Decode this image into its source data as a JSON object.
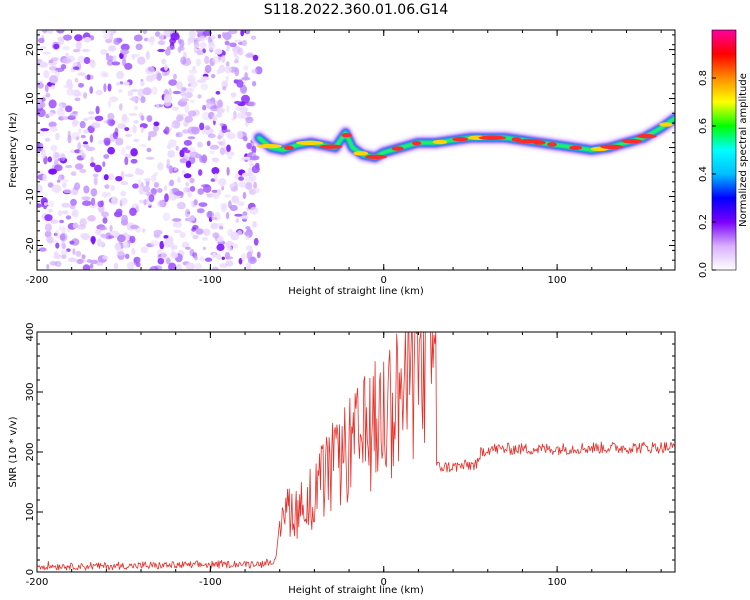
{
  "figure": {
    "title": "S118.2022.360.01.06.G14"
  },
  "chart_data": [
    {
      "type": "heatmap",
      "title": "",
      "xlabel": "Height of straight line (km)",
      "ylabel": "Frequency (Hz)",
      "xlim": [
        -200,
        168
      ],
      "ylim": [
        -25,
        24
      ],
      "xticks": [
        "-200",
        "-100",
        "0",
        "100"
      ],
      "xtick_values": [
        -200,
        -100,
        0,
        100
      ],
      "yticks": [
        "-20",
        "-10",
        "0",
        "10",
        "20"
      ],
      "ytick_values": [
        -20,
        -10,
        0,
        10,
        20
      ],
      "noise_region_x": [
        -200,
        -72
      ],
      "ridge": {
        "name": "",
        "x": [
          -72,
          -65,
          -58,
          -50,
          -42,
          -35,
          -28,
          -22,
          -18,
          -12,
          -5,
          0,
          10,
          20,
          30,
          40,
          50,
          60,
          70,
          80,
          90,
          100,
          110,
          120,
          130,
          140,
          150,
          160,
          168
        ],
        "y": [
          2,
          0,
          -0.5,
          0.5,
          1,
          0.5,
          0,
          3,
          0,
          -1.5,
          -2,
          -1,
          0,
          1,
          1,
          1.5,
          2,
          2,
          2,
          1.5,
          1,
          0.5,
          0,
          -0.5,
          0,
          1,
          2,
          4,
          6
        ]
      },
      "colorbar": {
        "label": "Normalized spectral amplitude",
        "range": [
          0.0,
          1.0
        ],
        "ticks": [
          "0.0",
          "0.2",
          "0.4",
          "0.6",
          "0.8"
        ],
        "tick_values": [
          0.0,
          0.2,
          0.4,
          0.6,
          0.8
        ],
        "colors": [
          "#ffffff",
          "#d9b0ff",
          "#7a00ff",
          "#0000ff",
          "#00bfff",
          "#00ffff",
          "#00ff00",
          "#ffff00",
          "#ff8c00",
          "#ff0000",
          "#ff00a0"
        ]
      }
    },
    {
      "type": "line",
      "title": "",
      "xlabel": "Height of straight line (km)",
      "ylabel": "SNR (10 * v/v)",
      "xlim": [
        -200,
        168
      ],
      "ylim": [
        0,
        400
      ],
      "xticks": [
        "-200",
        "-100",
        "0",
        "100"
      ],
      "xtick_values": [
        -200,
        -100,
        0,
        100
      ],
      "yticks": [
        "0",
        "100",
        "200",
        "300",
        "400"
      ],
      "ytick_values": [
        0,
        100,
        200,
        300,
        400
      ],
      "series": [
        {
          "name": "",
          "color": "#e8302a",
          "x": [
            -200,
            -150,
            -100,
            -70,
            -62,
            -60,
            -57,
            -50,
            -40,
            -30,
            -20,
            -10,
            0,
            10,
            20,
            30,
            30.5,
            40,
            55,
            56,
            60,
            80,
            100,
            120,
            140,
            160,
            168
          ],
          "y": [
            10,
            10,
            12,
            14,
            20,
            60,
            110,
            100,
            130,
            170,
            200,
            230,
            260,
            300,
            340,
            390,
            175,
            175,
            180,
            200,
            205,
            205,
            205,
            207,
            207,
            208,
            208
          ]
        }
      ]
    }
  ]
}
